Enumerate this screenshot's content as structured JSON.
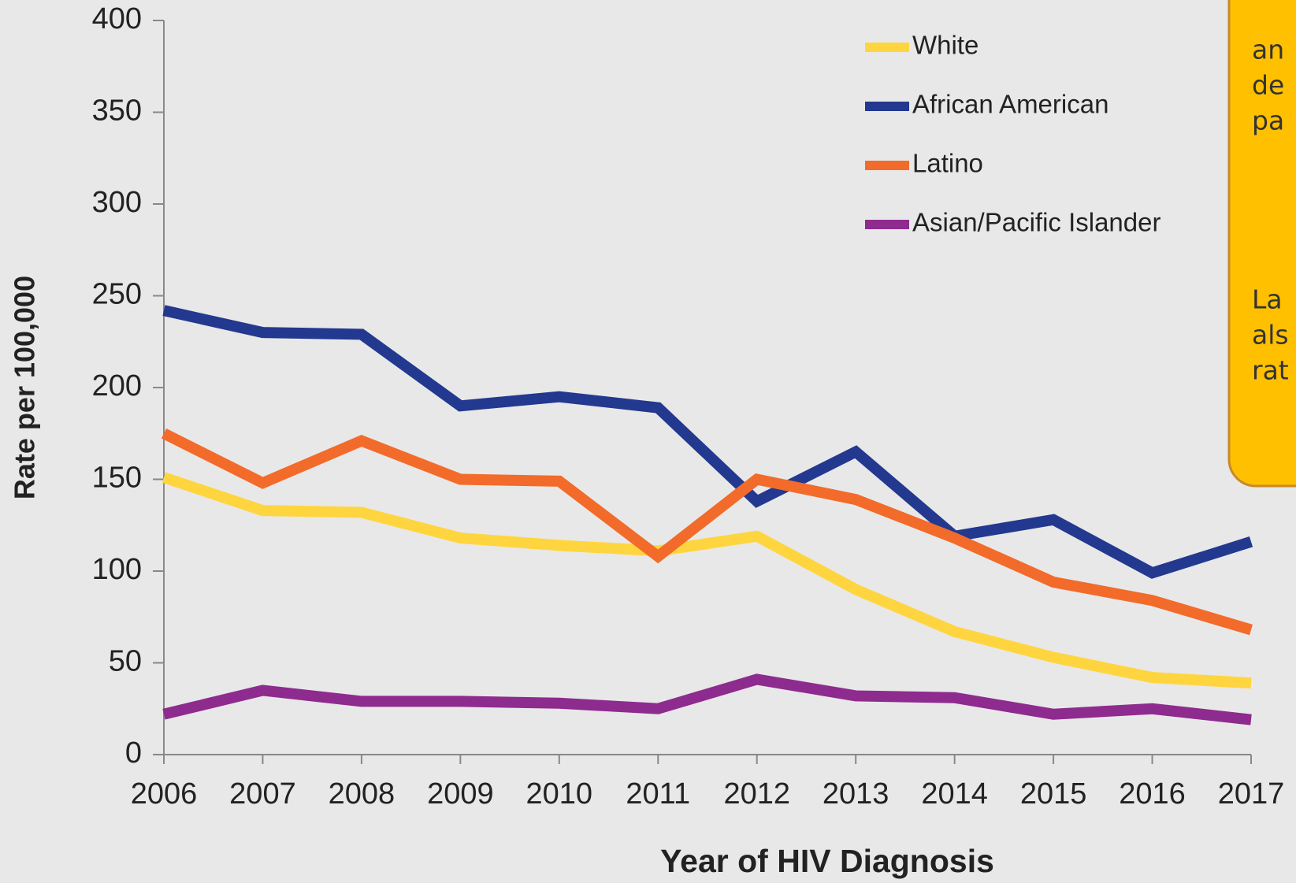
{
  "chart_data": {
    "type": "line",
    "xlabel": "Year of HIV Diagnosis",
    "ylabel": "Rate per 100,000",
    "x": [
      2006,
      2007,
      2008,
      2009,
      2010,
      2011,
      2012,
      2013,
      2014,
      2015,
      2016,
      2017
    ],
    "xlim": [
      2006,
      2017
    ],
    "xticks": [
      2006,
      2007,
      2008,
      2009,
      2010,
      2011,
      2012,
      2013,
      2014,
      2015,
      2016,
      2017
    ],
    "ylim": [
      0,
      400
    ],
    "yticks": [
      0,
      50,
      100,
      150,
      200,
      250,
      300,
      350,
      400
    ],
    "grid": false,
    "legend": "upper right",
    "series": [
      {
        "name": "White",
        "color": "#ffd53f",
        "values": [
          151,
          133,
          132,
          118,
          114,
          111,
          119,
          90,
          67,
          53,
          42,
          39
        ]
      },
      {
        "name": "African American",
        "color": "#23388f",
        "values": [
          242,
          230,
          229,
          190,
          195,
          189,
          138,
          165,
          119,
          128,
          99,
          116
        ]
      },
      {
        "name": "Latino",
        "color": "#f26b2a",
        "values": [
          175,
          148,
          171,
          150,
          149,
          108,
          150,
          139,
          118,
          94,
          84,
          68
        ]
      },
      {
        "name": "Asian/Pacific Islander",
        "color": "#8e2b8e",
        "values": [
          22,
          35,
          29,
          29,
          28,
          25,
          41,
          32,
          31,
          22,
          25,
          19
        ]
      }
    ],
    "annotation_lines": [
      "an",
      "de",
      "pa",
      "La",
      "als",
      "rat"
    ]
  }
}
